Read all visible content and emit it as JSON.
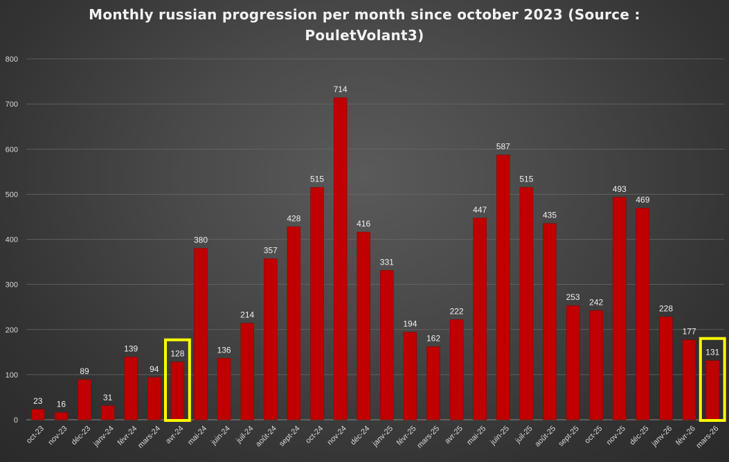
{
  "chart_data": {
    "type": "bar",
    "title_line1": "Monthly russian progression per month since october 2023 (Source :",
    "title_line2": "PouletVolant3)",
    "xlabel": "",
    "ylabel": "",
    "ylim": [
      0,
      800
    ],
    "yticks": [
      "0",
      "100",
      "200",
      "300",
      "400",
      "500",
      "600",
      "700",
      "800"
    ],
    "grid": true,
    "legend": "none",
    "categories": [
      "oct-23",
      "nov-23",
      "déc-23",
      "janv-24",
      "févr-24",
      "mars-24",
      "avr-24",
      "mai-24",
      "juin-24",
      "juil-24",
      "août-24",
      "sept-24",
      "oct-24",
      "nov-24",
      "déc-24",
      "janv-25",
      "févr-25",
      "mars-25",
      "avr-25",
      "mai-25",
      "juin-25",
      "juil-25",
      "août-25",
      "sept-25",
      "oct-25",
      "nov-25",
      "déc-25",
      "janv-26",
      "févr-26",
      "mars-26"
    ],
    "values": [
      23,
      16,
      89,
      31,
      139,
      94,
      128,
      380,
      136,
      214,
      357,
      428,
      515,
      714,
      416,
      331,
      194,
      162,
      222,
      447,
      587,
      515,
      435,
      253,
      242,
      493,
      469,
      228,
      177,
      131
    ],
    "highlighted_categories": [
      "avr-24",
      "mars-26"
    ],
    "colors": {
      "bar": "#c00000",
      "bar_edge": "#8b0000",
      "highlight": "#ffff00",
      "grid": "#6a6a6a",
      "text": "#d9d9d9"
    }
  }
}
